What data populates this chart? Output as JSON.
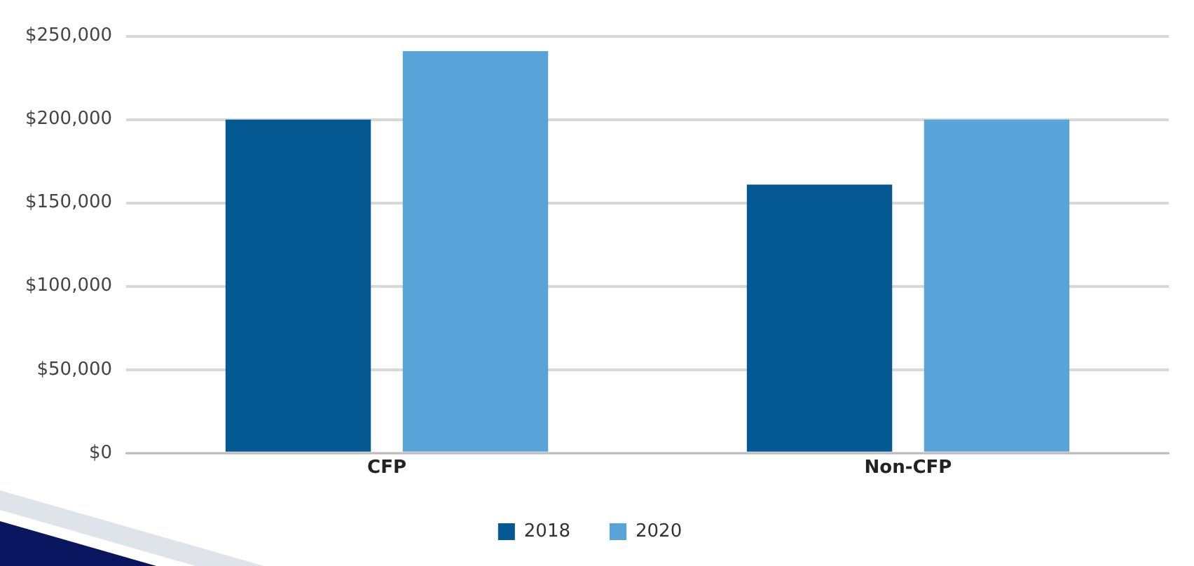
{
  "chart_data": {
    "type": "bar",
    "categories": [
      "CFP",
      "Non-CFP"
    ],
    "series": [
      {
        "name": "2018",
        "color": "#045993",
        "values": [
          200000,
          161000
        ]
      },
      {
        "name": "2020",
        "color": "#58a3d8",
        "values": [
          241000,
          200000
        ]
      }
    ],
    "ylim": [
      0,
      250000
    ],
    "yticks": [
      {
        "value": 0,
        "label": "$0"
      },
      {
        "value": 50000,
        "label": "$50,000"
      },
      {
        "value": 100000,
        "label": "$100,000"
      },
      {
        "value": 150000,
        "label": "$150,000"
      },
      {
        "value": 200000,
        "label": "$200,000"
      },
      {
        "value": 250000,
        "label": "$250,000"
      }
    ],
    "grid": "y",
    "legend": "bottom"
  }
}
